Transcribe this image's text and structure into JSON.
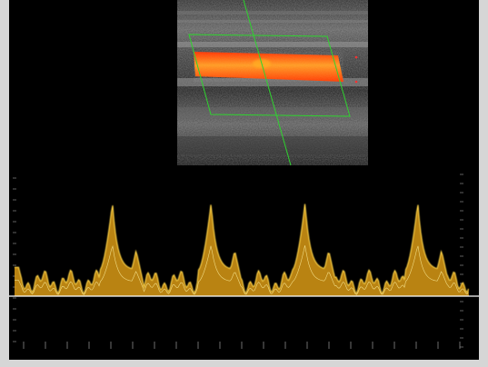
{
  "ultrasound": {
    "colors": {
      "background": "#000000",
      "bezel": "#d6d6d6",
      "flow": "#ff5a1a",
      "flow_highlight": "#ffb020",
      "waveform": "#f0c020",
      "waveform_core": "#fff2a0",
      "gate": "#2fd32f",
      "baseline": "#ffffff",
      "scale_marker": "#e6e600"
    },
    "top_left_marker": "",
    "top_right_marker": "",
    "depth_markers": {
      "mid": "",
      "bottom": ""
    },
    "velocity_scale": {
      "top_symbol": "",
      "labels": [
        {
          "text": "",
          "value": 100
        },
        {
          "text": "",
          "value": 50
        },
        {
          "text": "",
          "value": 0
        }
      ]
    },
    "waveform_shape": {
      "beats": [
        {
          "systolic_peak_x": 0.22
        },
        {
          "systolic_peak_x": 0.43
        },
        {
          "systolic_peak_x": 0.63
        },
        {
          "systolic_peak_x": 0.87
        }
      ],
      "peak_level": 0.86,
      "baseline_level": 0.24
    }
  }
}
